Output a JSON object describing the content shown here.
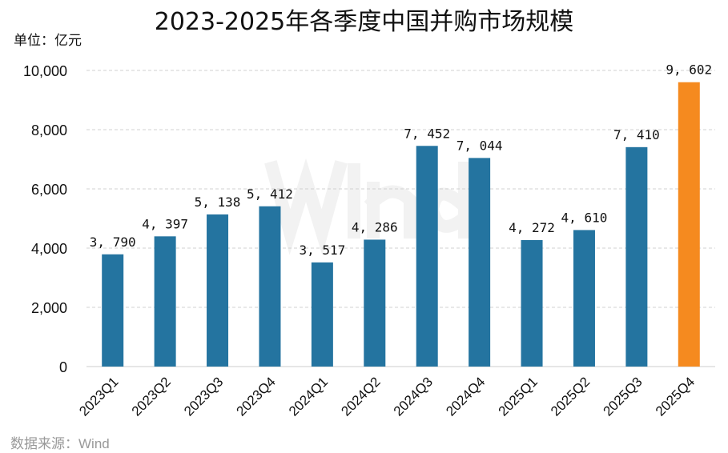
{
  "chart_data": {
    "type": "bar",
    "title": "2023-2025年各季度中国并购市场规模",
    "unit_label": "单位：亿元",
    "source": "数据来源：Wind",
    "watermark": "Wind",
    "categories": [
      "2023Q1",
      "2023Q2",
      "2023Q3",
      "2023Q4",
      "2024Q1",
      "2024Q2",
      "2024Q3",
      "2024Q4",
      "2025Q1",
      "2025Q2",
      "2025Q3",
      "2025Q4"
    ],
    "values": [
      3790,
      4397,
      5138,
      5412,
      3517,
      4286,
      7452,
      7044,
      4272,
      4610,
      7410,
      9602
    ],
    "data_labels": [
      "3, 790",
      "4, 397",
      "5, 138",
      "5, 412",
      "3, 517",
      "4, 286",
      "7, 452",
      "7, 044",
      "4, 272",
      "4, 610",
      "7, 410",
      "9, 602"
    ],
    "yticks": [
      0,
      2000,
      4000,
      6000,
      8000,
      10000
    ],
    "ytick_labels": [
      "0",
      "2,000",
      "4,000",
      "6,000",
      "8,000",
      "10,000"
    ],
    "ylim": [
      0,
      10000
    ],
    "grid": true,
    "colors": {
      "default": "#2474a0",
      "highlight": "#f58a1f"
    },
    "highlight_index": 11
  }
}
